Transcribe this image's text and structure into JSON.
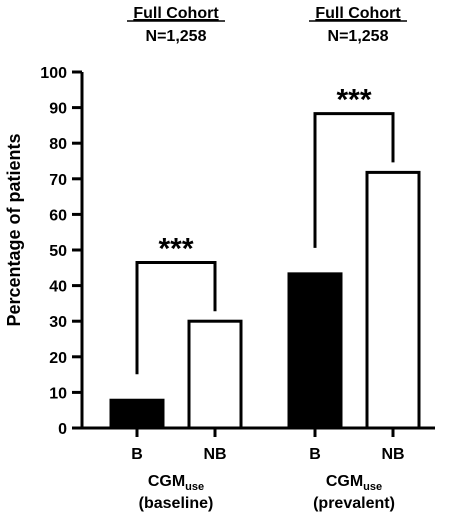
{
  "chart_data": {
    "type": "bar",
    "ylabel": "Percentage of patients",
    "ylim": [
      0,
      100
    ],
    "yticks": [
      0,
      10,
      20,
      30,
      40,
      50,
      60,
      70,
      80,
      90,
      100
    ],
    "grid": false,
    "colors": {
      "B": "#000000",
      "NB": "#ffffff",
      "outline": "#000000"
    },
    "groups": [
      {
        "header": "Full Cohort",
        "n_label": "N=1,258",
        "group_label_main": "CGM",
        "group_label_sub": "use",
        "group_label_paren": "(baseline)",
        "bars": [
          {
            "category": "B",
            "value": 7.8,
            "fill": "black"
          },
          {
            "category": "NB",
            "value": 30,
            "fill": "white"
          }
        ],
        "significance": "***"
      },
      {
        "header": "Full Cohort",
        "n_label": "N=1,258",
        "group_label_main": "CGM",
        "group_label_sub": "use",
        "group_label_paren": "(prevalent)",
        "bars": [
          {
            "category": "B",
            "value": 43.3,
            "fill": "black"
          },
          {
            "category": "NB",
            "value": 71.8,
            "fill": "white"
          }
        ],
        "significance": "***"
      }
    ]
  }
}
